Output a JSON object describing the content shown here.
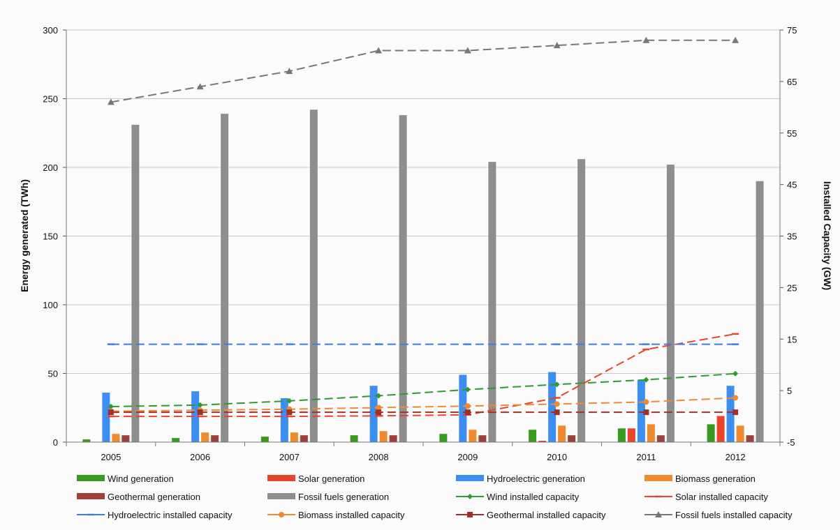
{
  "chart_data": {
    "type": "bar",
    "categories": [
      "2005",
      "2006",
      "2007",
      "2008",
      "2009",
      "2010",
      "2011",
      "2012"
    ],
    "ylabel": "Energy generated  (TWh)",
    "y2label": "Installed Capacity (GW)",
    "ylim": [
      0,
      300
    ],
    "yticks": [
      0,
      50,
      100,
      150,
      200,
      250,
      300
    ],
    "y2lim": [
      -5,
      75
    ],
    "y2ticks": [
      -5,
      5,
      15,
      25,
      35,
      45,
      55,
      65,
      75
    ],
    "grid": true,
    "legend_position": "bottom",
    "bar_series": [
      {
        "name": "Wind generation",
        "color": "#3a9a1f",
        "values": [
          2,
          3,
          4,
          5,
          6,
          9,
          10,
          13
        ]
      },
      {
        "name": "Solar generation",
        "color": "#e8442c",
        "values": [
          0,
          0,
          0,
          0,
          0,
          1,
          10,
          19
        ]
      },
      {
        "name": "Hydroelectric generation",
        "color": "#3c8ef0",
        "values": [
          36,
          37,
          32,
          41,
          49,
          51,
          45,
          41
        ]
      },
      {
        "name": "Biomass generation",
        "color": "#ef8a2e",
        "values": [
          6,
          7,
          7,
          8,
          9,
          12,
          13,
          12
        ]
      },
      {
        "name": "Geothermal generation",
        "color": "#a0403a",
        "values": [
          5,
          5,
          5,
          5,
          5,
          5,
          5,
          5
        ]
      },
      {
        "name": "Fossil fuels generation",
        "color": "#8e8e8e",
        "values": [
          231,
          239,
          242,
          238,
          204,
          206,
          202,
          190
        ]
      }
    ],
    "line_series": [
      {
        "name": "Wind installed capacity",
        "color": "#2f9a2f",
        "marker": "diamond",
        "values": [
          1.9,
          2.2,
          3.0,
          4.0,
          5.2,
          6.2,
          7.1,
          8.3
        ]
      },
      {
        "name": "Solar installed capacity",
        "color": "#e8442c",
        "marker": "dash",
        "values": [
          0.0,
          0.0,
          0.0,
          0.1,
          0.3,
          3.6,
          13.0,
          16.0
        ]
      },
      {
        "name": "Hydroelectric installed capacity",
        "color": "#3c7ef0",
        "marker": "dash",
        "values": [
          14.0,
          14.0,
          14.0,
          14.0,
          14.0,
          14.0,
          14.0,
          14.0
        ]
      },
      {
        "name": "Biomass installed capacity",
        "color": "#ef8a2e",
        "marker": "circle",
        "values": [
          1.0,
          1.2,
          1.4,
          1.7,
          2.0,
          2.4,
          2.8,
          3.6
        ]
      },
      {
        "name": "Geothermal installed capacity",
        "color": "#a0302a",
        "marker": "square",
        "values": [
          0.8,
          0.8,
          0.8,
          0.8,
          0.8,
          0.8,
          0.8,
          0.8
        ]
      },
      {
        "name": "Fossil fuels installed capacity",
        "color": "#777777",
        "marker": "triangle",
        "values": [
          61,
          64,
          67,
          71,
          71,
          72,
          73,
          73
        ]
      }
    ]
  }
}
